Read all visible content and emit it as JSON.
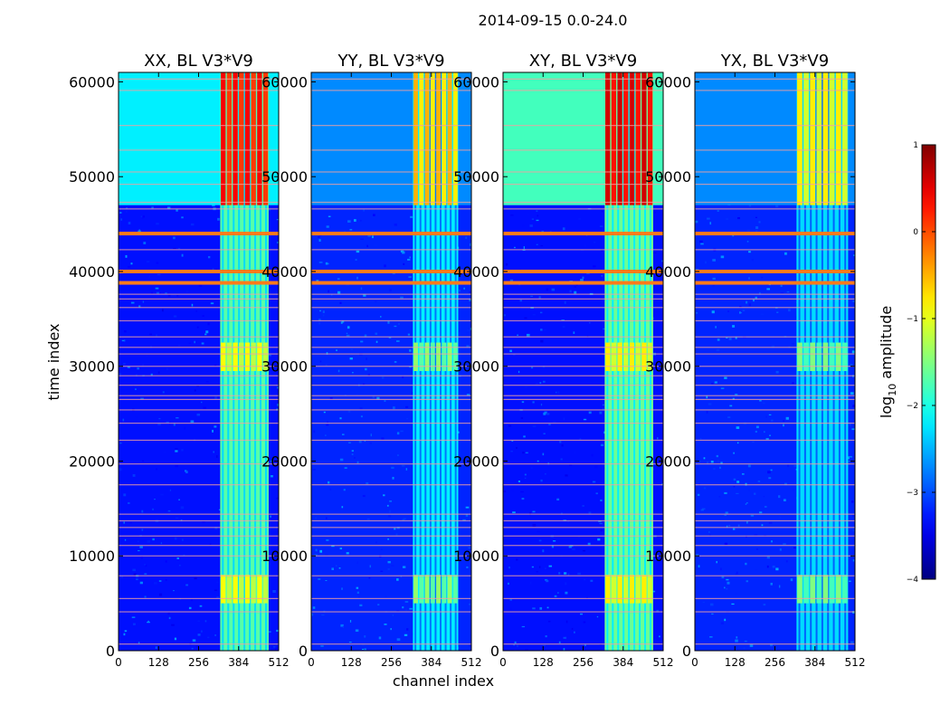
{
  "figure": {
    "suptitle": "2014-09-15 0.0-24.0",
    "xlabel": "channel index",
    "ylabel": "time index",
    "colorbar_label_prefix": "log",
    "colorbar_label_sub": "10",
    "colorbar_label_suffix": "amplitude"
  },
  "chart_data": {
    "type": "heatmap",
    "suptitle": "2014-09-15 0.0-24.0",
    "xlabel": "channel index",
    "ylabel": "time index",
    "xlim": [
      0,
      512
    ],
    "ylim": [
      0,
      61000
    ],
    "x_ticks": [
      0,
      128,
      256,
      384,
      512
    ],
    "y_ticks": [
      0,
      10000,
      20000,
      30000,
      40000,
      50000,
      60000
    ],
    "colormap": "jet",
    "colorbar": {
      "label": "log10 amplitude",
      "range": [
        -4,
        1
      ],
      "ticks": [
        1,
        0,
        -1,
        -2,
        -3,
        -4
      ],
      "tick_labels": [
        "1",
        "0",
        "−1",
        "−2",
        "−3",
        "−4"
      ]
    },
    "panels": [
      {
        "title": "XX, BL V3*V9",
        "background_level": -3.3,
        "band_level": -1.4,
        "strong_level": 0.4,
        "upper_level": -2.2,
        "band_channels": [
          325,
          480
        ]
      },
      {
        "title": "YY, BL V3*V9",
        "background_level": -3.2,
        "band_level": -1.9,
        "strong_level": -0.5,
        "upper_level": -2.7,
        "band_channels": [
          325,
          470
        ]
      },
      {
        "title": "XY, BL V3*V9",
        "background_level": -3.3,
        "band_level": -1.3,
        "strong_level": 0.6,
        "upper_level": -1.8,
        "band_channels": [
          325,
          480
        ]
      },
      {
        "title": "YX, BL V3*V9",
        "background_level": -3.2,
        "band_level": -2.0,
        "strong_level": -0.8,
        "upper_level": -2.7,
        "band_channels": [
          325,
          490
        ]
      }
    ],
    "rfi_time_rows": [
      700,
      4100,
      5500,
      7900,
      10000,
      11100,
      12100,
      13000,
      13700,
      14400,
      17500,
      19700,
      22200,
      24000,
      25400,
      26500,
      26900,
      28000,
      29000,
      30000,
      31300,
      32000,
      33100,
      34800,
      36200,
      37100,
      37600,
      38800,
      40000,
      42300,
      44000,
      46600,
      47300,
      49200,
      50500,
      52800,
      55400,
      59100,
      60300
    ],
    "strong_rfi_rows": [
      38800,
      40000,
      44000
    ],
    "active_time_ranges": [
      {
        "from": 47000,
        "to": 61000,
        "kind": "strong"
      },
      {
        "from": 29500,
        "to": 32500,
        "kind": "enhanced"
      },
      {
        "from": 5000,
        "to": 8000,
        "kind": "enhanced"
      }
    ]
  }
}
